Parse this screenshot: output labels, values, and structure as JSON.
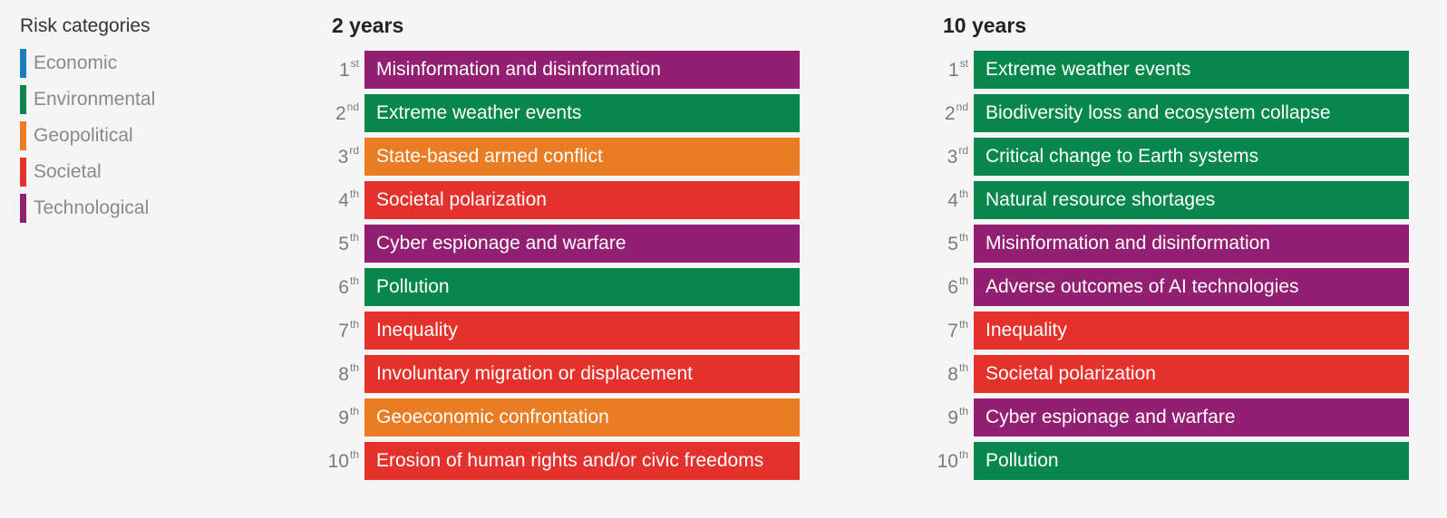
{
  "colors": {
    "Economic": "#1a7fc0",
    "Environmental": "#07874b",
    "Geopolitical": "#ea7c23",
    "Societal": "#e4312b",
    "Technological": "#921f72"
  },
  "legend": {
    "title": "Risk categories",
    "items": [
      "Economic",
      "Environmental",
      "Geopolitical",
      "Societal",
      "Technological"
    ]
  },
  "chart_data": [
    {
      "type": "table",
      "title": "2 years",
      "rows": [
        {
          "rank": "1",
          "suffix": "st",
          "risk": "Misinformation and disinformation",
          "category": "Technological"
        },
        {
          "rank": "2",
          "suffix": "nd",
          "risk": "Extreme weather events",
          "category": "Environmental"
        },
        {
          "rank": "3",
          "suffix": "rd",
          "risk": "State-based armed conflict",
          "category": "Geopolitical"
        },
        {
          "rank": "4",
          "suffix": "th",
          "risk": "Societal polarization",
          "category": "Societal"
        },
        {
          "rank": "5",
          "suffix": "th",
          "risk": "Cyber espionage and warfare",
          "category": "Technological"
        },
        {
          "rank": "6",
          "suffix": "th",
          "risk": "Pollution",
          "category": "Environmental"
        },
        {
          "rank": "7",
          "suffix": "th",
          "risk": "Inequality",
          "category": "Societal"
        },
        {
          "rank": "8",
          "suffix": "th",
          "risk": "Involuntary migration or displacement",
          "category": "Societal"
        },
        {
          "rank": "9",
          "suffix": "th",
          "risk": "Geoeconomic confrontation",
          "category": "Geopolitical"
        },
        {
          "rank": "10",
          "suffix": "th",
          "risk": "Erosion of human rights and/or civic freedoms",
          "category": "Societal"
        }
      ]
    },
    {
      "type": "table",
      "title": "10 years",
      "rows": [
        {
          "rank": "1",
          "suffix": "st",
          "risk": "Extreme weather events",
          "category": "Environmental"
        },
        {
          "rank": "2",
          "suffix": "nd",
          "risk": "Biodiversity loss and ecosystem collapse",
          "category": "Environmental"
        },
        {
          "rank": "3",
          "suffix": "rd",
          "risk": "Critical change to Earth systems",
          "category": "Environmental"
        },
        {
          "rank": "4",
          "suffix": "th",
          "risk": "Natural resource shortages",
          "category": "Environmental"
        },
        {
          "rank": "5",
          "suffix": "th",
          "risk": "Misinformation and disinformation",
          "category": "Technological"
        },
        {
          "rank": "6",
          "suffix": "th",
          "risk": "Adverse outcomes of AI technologies",
          "category": "Technological"
        },
        {
          "rank": "7",
          "suffix": "th",
          "risk": "Inequality",
          "category": "Societal"
        },
        {
          "rank": "8",
          "suffix": "th",
          "risk": "Societal polarization",
          "category": "Societal"
        },
        {
          "rank": "9",
          "suffix": "th",
          "risk": "Cyber espionage and warfare",
          "category": "Technological"
        },
        {
          "rank": "10",
          "suffix": "th",
          "risk": "Pollution",
          "category": "Environmental"
        }
      ]
    }
  ]
}
